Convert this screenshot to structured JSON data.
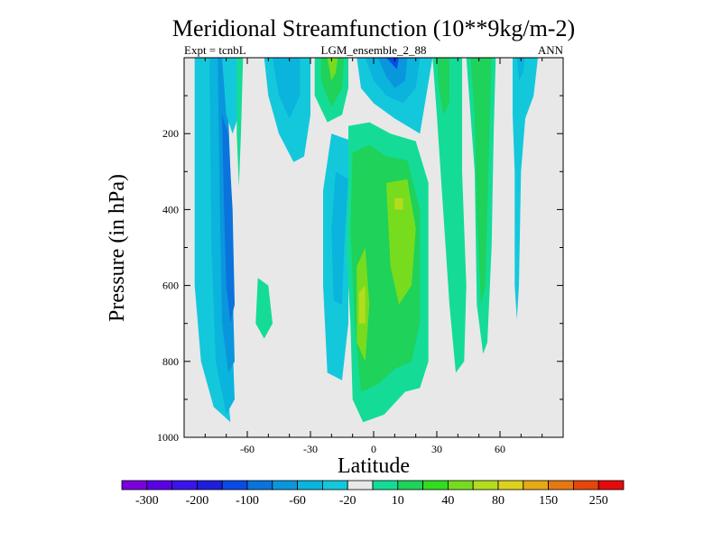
{
  "chart_data": {
    "type": "heatmap",
    "title": "Meridional Streamfunction (10**9kg/m-2)",
    "subtitle_left": "Expt = tcnbL",
    "subtitle_center": "LGM_ensemble_2_88",
    "subtitle_right": "ANN",
    "xlabel": "Latitude",
    "ylabel": "Pressure (in hPa)",
    "xlim": [
      -90,
      90
    ],
    "ylim": [
      1000,
      0
    ],
    "x_ticks": [
      -60,
      -30,
      0,
      30,
      60
    ],
    "x_tick_labels": [
      "-60",
      "-30",
      "0",
      "30",
      "60"
    ],
    "y_ticks": [
      200,
      400,
      600,
      800,
      1000
    ],
    "y_tick_labels": [
      "200",
      "400",
      "600",
      "800",
      "1000"
    ],
    "background_color": "#e8e8e8",
    "levels": [
      -300,
      -250,
      -200,
      -150,
      -100,
      -80,
      -60,
      -40,
      -20,
      -10,
      10,
      20,
      40,
      60,
      80,
      100,
      150,
      200,
      250,
      300
    ],
    "colorbar_labels": [
      "-300",
      "-200",
      "-100",
      "-60",
      "-20",
      "10",
      "40",
      "80",
      "150",
      "250"
    ],
    "colorbar_colors": [
      "#7a00dc",
      "#5a00e6",
      "#3c14eb",
      "#1e1edc",
      "#0a4be6",
      "#0a73dc",
      "#0a96dc",
      "#0ab4dc",
      "#14c8dc",
      "#e8e8e8",
      "#14dc96",
      "#1ed25a",
      "#32dc1e",
      "#78dc1e",
      "#b4dc1e",
      "#dcd21e",
      "#e6aa14",
      "#e67814",
      "#e6460a",
      "#e60a0a"
    ],
    "contour_regions": [
      {
        "level": -20,
        "color": "#14c8dc",
        "polygon": [
          [
            -85,
            0
          ],
          [
            -78,
            0
          ],
          [
            -76,
            300
          ],
          [
            -72,
            700
          ],
          [
            -68,
            960
          ],
          [
            -76,
            920
          ],
          [
            -82,
            800
          ],
          [
            -85,
            600
          ]
        ]
      },
      {
        "level": -40,
        "color": "#0ab4dc",
        "polygon": [
          [
            -78,
            0
          ],
          [
            -72,
            0
          ],
          [
            -70,
            300
          ],
          [
            -68,
            600
          ],
          [
            -66,
            900
          ],
          [
            -70,
            940
          ],
          [
            -75,
            800
          ],
          [
            -77,
            500
          ]
        ]
      },
      {
        "level": -60,
        "color": "#0a96dc",
        "polygon": [
          [
            -74,
            0
          ],
          [
            -70,
            0
          ],
          [
            -68,
            300
          ],
          [
            -67,
            600
          ],
          [
            -66,
            800
          ],
          [
            -69,
            830
          ],
          [
            -72,
            700
          ],
          [
            -73,
            400
          ]
        ]
      },
      {
        "level": -80,
        "color": "#0a73dc",
        "polygon": [
          [
            -72,
            150
          ],
          [
            -69,
            200
          ],
          [
            -67,
            400
          ],
          [
            -66,
            650
          ],
          [
            -68,
            700
          ],
          [
            -70,
            600
          ],
          [
            -71,
            400
          ]
        ]
      },
      {
        "level": -20,
        "color": "#14c8dc",
        "polygon": [
          [
            -72,
            0
          ],
          [
            -65,
            0
          ],
          [
            -64,
            150
          ],
          [
            -67,
            200
          ],
          [
            -70,
            150
          ]
        ]
      },
      {
        "level": 10,
        "color": "#14dc96",
        "polygon": [
          [
            -65,
            0
          ],
          [
            -62,
            0
          ],
          [
            -63,
            200
          ],
          [
            -64,
            340
          ],
          [
            -65,
            200
          ]
        ]
      },
      {
        "level": -20,
        "color": "#14c8dc",
        "polygon": [
          [
            -52,
            0
          ],
          [
            -30,
            0
          ],
          [
            -30,
            150
          ],
          [
            -33,
            260
          ],
          [
            -38,
            275
          ],
          [
            -45,
            200
          ],
          [
            -50,
            100
          ]
        ]
      },
      {
        "level": -40,
        "color": "#0ab4dc",
        "polygon": [
          [
            -48,
            0
          ],
          [
            -35,
            0
          ],
          [
            -35,
            100
          ],
          [
            -40,
            160
          ],
          [
            -45,
            100
          ]
        ]
      },
      {
        "level": 10,
        "color": "#14dc96",
        "polygon": [
          [
            -55,
            580
          ],
          [
            -50,
            600
          ],
          [
            -48,
            700
          ],
          [
            -52,
            740
          ],
          [
            -56,
            700
          ]
        ]
      },
      {
        "level": 10,
        "color": "#14dc96",
        "polygon": [
          [
            -28,
            0
          ],
          [
            -12,
            0
          ],
          [
            -12,
            80
          ],
          [
            -15,
            150
          ],
          [
            -22,
            170
          ],
          [
            -28,
            100
          ]
        ]
      },
      {
        "level": 20,
        "color": "#1ed25a",
        "polygon": [
          [
            -25,
            0
          ],
          [
            -14,
            0
          ],
          [
            -15,
            80
          ],
          [
            -20,
            130
          ],
          [
            -25,
            60
          ]
        ]
      },
      {
        "level": 40,
        "color": "#78dc1e",
        "polygon": [
          [
            -22,
            0
          ],
          [
            -17,
            0
          ],
          [
            -18,
            40
          ],
          [
            -20,
            60
          ]
        ]
      },
      {
        "level": -20,
        "color": "#14c8dc",
        "polygon": [
          [
            -8,
            0
          ],
          [
            28,
            0
          ],
          [
            25,
            100
          ],
          [
            22,
            200
          ],
          [
            10,
            160
          ],
          [
            0,
            120
          ],
          [
            -6,
            80
          ]
        ]
      },
      {
        "level": -40,
        "color": "#0ab4dc",
        "polygon": [
          [
            -4,
            0
          ],
          [
            22,
            0
          ],
          [
            20,
            80
          ],
          [
            14,
            120
          ],
          [
            6,
            100
          ],
          [
            0,
            60
          ]
        ]
      },
      {
        "level": -60,
        "color": "#0a96dc",
        "polygon": [
          [
            2,
            0
          ],
          [
            16,
            0
          ],
          [
            15,
            60
          ],
          [
            10,
            80
          ],
          [
            6,
            50
          ]
        ]
      },
      {
        "level": -100,
        "color": "#0a4be6",
        "polygon": [
          [
            6,
            0
          ],
          [
            12,
            0
          ],
          [
            11,
            30
          ]
        ]
      },
      {
        "level": -20,
        "color": "#14c8dc",
        "polygon": [
          [
            -20,
            200
          ],
          [
            -10,
            220
          ],
          [
            -12,
            400
          ],
          [
            -12,
            700
          ],
          [
            -15,
            850
          ],
          [
            -22,
            830
          ],
          [
            -24,
            600
          ],
          [
            -24,
            350
          ]
        ]
      },
      {
        "level": -40,
        "color": "#0ab4dc",
        "polygon": [
          [
            -18,
            300
          ],
          [
            -12,
            320
          ],
          [
            -14,
            500
          ],
          [
            -15,
            650
          ],
          [
            -19,
            640
          ],
          [
            -20,
            450
          ]
        ]
      },
      {
        "level": 10,
        "color": "#14dc96",
        "polygon": [
          [
            -12,
            180
          ],
          [
            -2,
            170
          ],
          [
            8,
            200
          ],
          [
            20,
            220
          ],
          [
            26,
            330
          ],
          [
            26,
            800
          ],
          [
            22,
            870
          ],
          [
            15,
            880
          ],
          [
            5,
            940
          ],
          [
            -5,
            960
          ],
          [
            -10,
            900
          ],
          [
            -11,
            700
          ],
          [
            -13,
            500
          ],
          [
            -12,
            300
          ]
        ]
      },
      {
        "level": 20,
        "color": "#1ed25a",
        "polygon": [
          [
            -10,
            250
          ],
          [
            -2,
            230
          ],
          [
            6,
            260
          ],
          [
            16,
            270
          ],
          [
            22,
            400
          ],
          [
            22,
            700
          ],
          [
            18,
            800
          ],
          [
            10,
            820
          ],
          [
            2,
            860
          ],
          [
            -6,
            880
          ],
          [
            -9,
            700
          ],
          [
            -11,
            450
          ]
        ]
      },
      {
        "level": 40,
        "color": "#78dc1e",
        "polygon": [
          [
            -8,
            550
          ],
          [
            -4,
            500
          ],
          [
            -2,
            650
          ],
          [
            -4,
            800
          ],
          [
            -8,
            750
          ]
        ]
      },
      {
        "level": 40,
        "color": "#78dc1e",
        "polygon": [
          [
            6,
            330
          ],
          [
            16,
            320
          ],
          [
            20,
            450
          ],
          [
            18,
            600
          ],
          [
            12,
            650
          ],
          [
            8,
            550
          ]
        ]
      },
      {
        "level": 60,
        "color": "#b4dc1e",
        "polygon": [
          [
            10,
            370
          ],
          [
            14,
            370
          ],
          [
            14,
            400
          ],
          [
            10,
            400
          ]
        ]
      },
      {
        "level": 60,
        "color": "#b4dc1e",
        "polygon": [
          [
            -7,
            620
          ],
          [
            -4,
            600
          ],
          [
            -4,
            700
          ],
          [
            -7,
            700
          ]
        ]
      },
      {
        "level": 10,
        "color": "#14dc96",
        "polygon": [
          [
            28,
            0
          ],
          [
            42,
            0
          ],
          [
            42,
            300
          ],
          [
            44,
            600
          ],
          [
            43,
            800
          ],
          [
            39,
            830
          ],
          [
            36,
            650
          ],
          [
            33,
            400
          ],
          [
            30,
            150
          ]
        ]
      },
      {
        "level": 20,
        "color": "#1ed25a",
        "polygon": [
          [
            30,
            0
          ],
          [
            36,
            0
          ],
          [
            36,
            120
          ],
          [
            33,
            150
          ],
          [
            31,
            80
          ]
        ]
      },
      {
        "level": 10,
        "color": "#14dc96",
        "polygon": [
          [
            44,
            0
          ],
          [
            58,
            0
          ],
          [
            57,
            200
          ],
          [
            56,
            500
          ],
          [
            54,
            750
          ],
          [
            52,
            780
          ],
          [
            49,
            650
          ],
          [
            48,
            300
          ]
        ]
      },
      {
        "level": 20,
        "color": "#1ed25a",
        "polygon": [
          [
            46,
            0
          ],
          [
            56,
            0
          ],
          [
            55,
            200
          ],
          [
            54,
            400
          ],
          [
            53,
            600
          ],
          [
            51,
            650
          ],
          [
            49,
            400
          ],
          [
            48,
            150
          ]
        ]
      },
      {
        "level": -20,
        "color": "#14c8dc",
        "polygon": [
          [
            66,
            0
          ],
          [
            78,
            0
          ],
          [
            76,
            100
          ],
          [
            72,
            160
          ],
          [
            70,
            300
          ],
          [
            69,
            600
          ],
          [
            68,
            690
          ],
          [
            67,
            600
          ],
          [
            67,
            300
          ],
          [
            66,
            150
          ]
        ]
      },
      {
        "level": -40,
        "color": "#0ab4dc",
        "polygon": [
          [
            68,
            0
          ],
          [
            72,
            0
          ],
          [
            71,
            40
          ],
          [
            69,
            60
          ]
        ]
      }
    ]
  }
}
